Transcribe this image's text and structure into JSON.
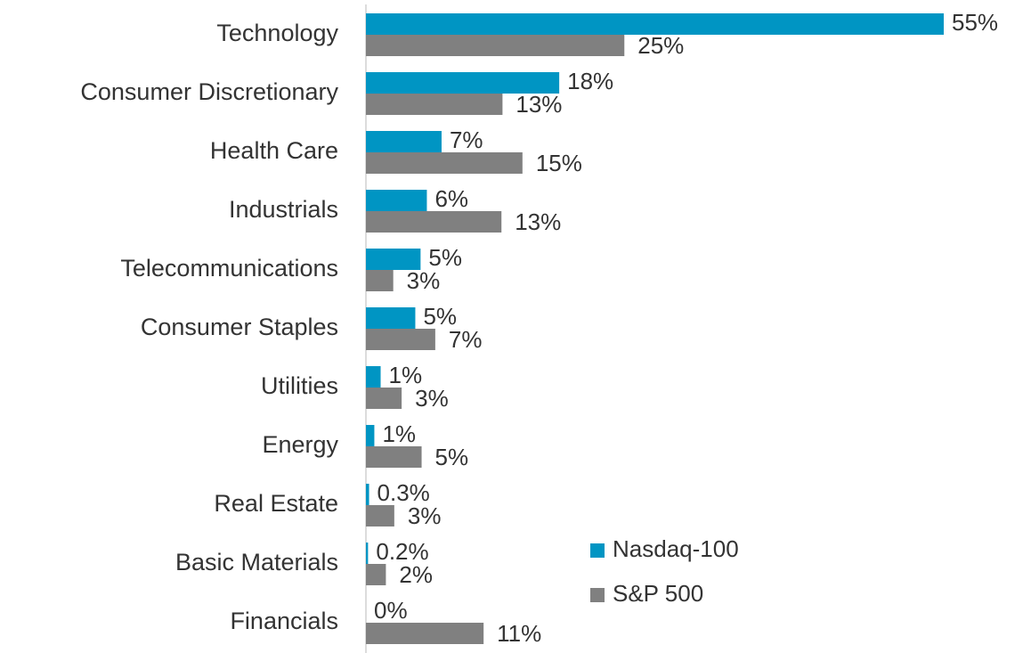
{
  "chart_data": {
    "type": "barh",
    "categories": [
      "Technology",
      "Consumer Discretionary",
      "Health Care",
      "Industrials",
      "Telecommunications",
      "Consumer Staples",
      "Utilities",
      "Energy",
      "Real Estate",
      "Basic Materials",
      "Financials"
    ],
    "series": [
      {
        "name": "Nasdaq-100",
        "color": "#0095c3",
        "values": [
          55.0,
          18.4,
          7.2,
          5.8,
          5.2,
          4.7,
          1.4,
          0.8,
          0.3,
          0.2,
          0
        ],
        "value_labels": [
          "55%",
          "18%",
          "7%",
          "6%",
          "5%",
          "5%",
          "1%",
          "1%",
          "0.3%",
          "0.2%",
          "0%"
        ]
      },
      {
        "name": "S&P 500",
        "color": "#808080",
        "values": [
          24.6,
          13.0,
          14.9,
          12.9,
          2.6,
          6.6,
          3.4,
          5.3,
          2.7,
          1.9,
          11.2
        ],
        "value_labels": [
          "25%",
          "13%",
          "15%",
          "13%",
          "3%",
          "7%",
          "3%",
          "5%",
          "3%",
          "2%",
          "11%"
        ]
      }
    ],
    "xlim": [
      0,
      55
    ],
    "legend": "lower right"
  }
}
